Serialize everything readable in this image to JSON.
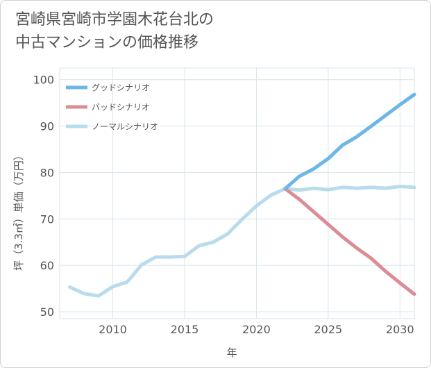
{
  "title": {
    "line1": "宮崎県宮崎市学園木花台北の",
    "line2": "中古マンションの価格推移"
  },
  "chart_data": {
    "type": "line",
    "xlabel": "年",
    "ylabel": "坪（3.3㎡）単価（万円）",
    "xlim": [
      2006.3,
      2031
    ],
    "ylim": [
      48.5,
      102.5
    ],
    "xticks": [
      2010,
      2015,
      2020,
      2025,
      2030
    ],
    "yticks": [
      50,
      60,
      70,
      80,
      90,
      100
    ],
    "grid": true,
    "legend_position": "top-left",
    "series": [
      {
        "name": "グッドシナリオ",
        "color": "#6cb6e8",
        "x": [
          2022,
          2023,
          2024,
          2025,
          2026,
          2027,
          2028,
          2029,
          2030,
          2031
        ],
        "values": [
          76.5,
          79.2,
          80.8,
          83.0,
          85.9,
          87.7,
          90.0,
          92.3,
          94.6,
          96.8
        ]
      },
      {
        "name": "バッドシナリオ",
        "color": "#dc8c95",
        "x": [
          2022,
          2023,
          2024,
          2025,
          2026,
          2027,
          2028,
          2029,
          2030,
          2031
        ],
        "values": [
          76.5,
          74.2,
          71.5,
          68.8,
          66.1,
          63.7,
          61.5,
          58.7,
          56.2,
          53.8
        ]
      },
      {
        "name": "ノーマルシナリオ",
        "color": "#b8dcec",
        "x": [
          2007,
          2008,
          2009,
          2010,
          2011,
          2012,
          2013,
          2014,
          2015,
          2016,
          2017,
          2018,
          2019,
          2020,
          2021,
          2022,
          2023,
          2024,
          2025,
          2026,
          2027,
          2028,
          2029,
          2030,
          2031
        ],
        "values": [
          55.3,
          53.9,
          53.4,
          55.4,
          56.4,
          60.1,
          61.8,
          61.8,
          61.9,
          64.2,
          65.0,
          66.8,
          69.9,
          72.8,
          75.1,
          76.5,
          76.2,
          76.6,
          76.3,
          76.8,
          76.6,
          76.8,
          76.6,
          77.0,
          76.8
        ]
      }
    ]
  }
}
